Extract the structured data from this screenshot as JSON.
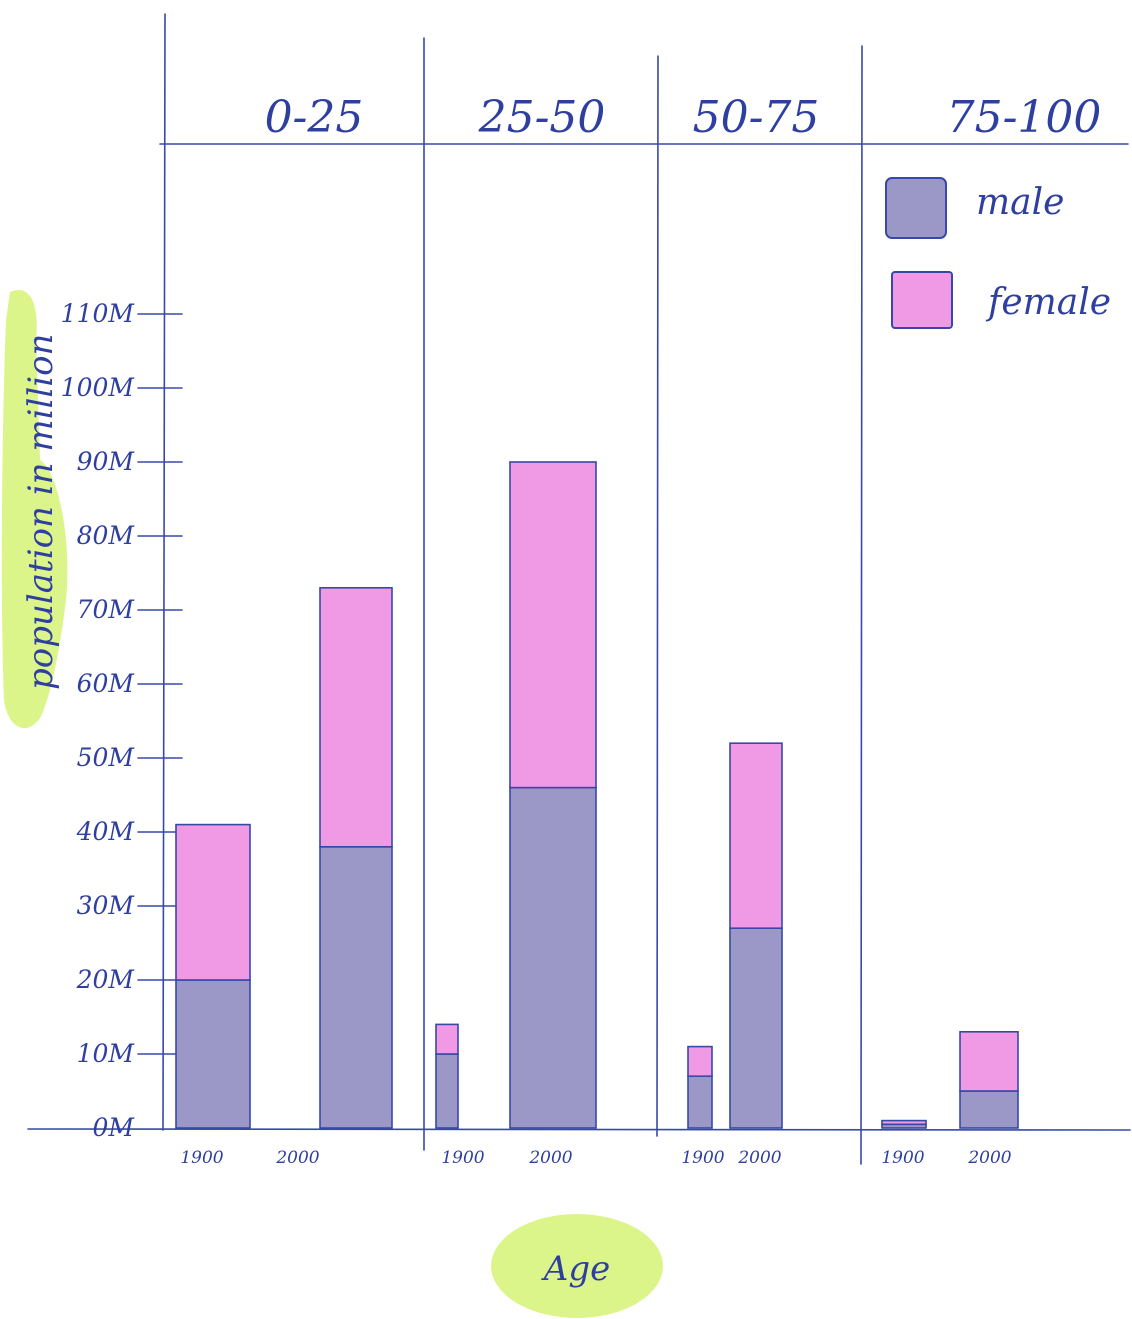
{
  "chart_data": {
    "type": "bar",
    "stacked": true,
    "title": "",
    "xlabel": "Age",
    "ylabel": "population in million",
    "groups": [
      "0-25",
      "25-50",
      "50-75",
      "75-100"
    ],
    "years": [
      "1900",
      "2000"
    ],
    "y_ticks": [
      "0M",
      "10M",
      "20M",
      "30M",
      "40M",
      "50M",
      "60M",
      "70M",
      "80M",
      "90M",
      "100M",
      "110M"
    ],
    "ylim": [
      0,
      110
    ],
    "series": [
      {
        "name": "male",
        "color": "#9b97c7",
        "values": {
          "0-25": [
            20,
            38
          ],
          "25-50": [
            10,
            46
          ],
          "50-75": [
            7,
            27
          ],
          "75-100": [
            0.5,
            5
          ]
        }
      },
      {
        "name": "female",
        "color": "#f09ae6",
        "values": {
          "0-25": [
            21,
            35
          ],
          "25-50": [
            4,
            44
          ],
          "50-75": [
            4,
            25
          ],
          "75-100": [
            0.5,
            8
          ]
        }
      }
    ],
    "legend": [
      "male",
      "female"
    ],
    "legend_position": "top-right",
    "grid": false
  },
  "colors": {
    "ink": "#3848a8",
    "highlight": "#dcf58a",
    "male": "#9b97c7",
    "female": "#f09ae6"
  }
}
